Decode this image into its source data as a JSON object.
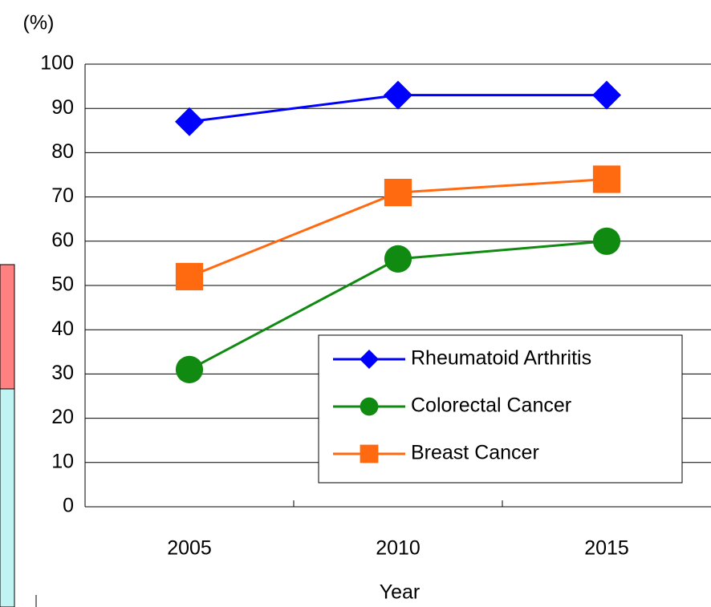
{
  "chart_data": {
    "type": "line",
    "y_label": "(%)",
    "x_label": "Year",
    "categories": [
      "2005",
      "2010",
      "2015"
    ],
    "series": [
      {
        "name": "Rheumatoid Arthritis",
        "color": "#0000ff",
        "marker": "diamond",
        "values": [
          87,
          93,
          93
        ]
      },
      {
        "name": "Colorectal Cancer",
        "color": "#108a10",
        "marker": "circle",
        "values": [
          31,
          56,
          60
        ]
      },
      {
        "name": "Breast Cancer",
        "color": "#ff6a10",
        "marker": "square",
        "values": [
          52,
          71,
          74
        ]
      }
    ],
    "ylim": [
      0,
      100
    ],
    "yticks": [
      0,
      10,
      20,
      30,
      40,
      50,
      60,
      70,
      80,
      90,
      100
    ],
    "grid": true,
    "legend": "lower right"
  }
}
